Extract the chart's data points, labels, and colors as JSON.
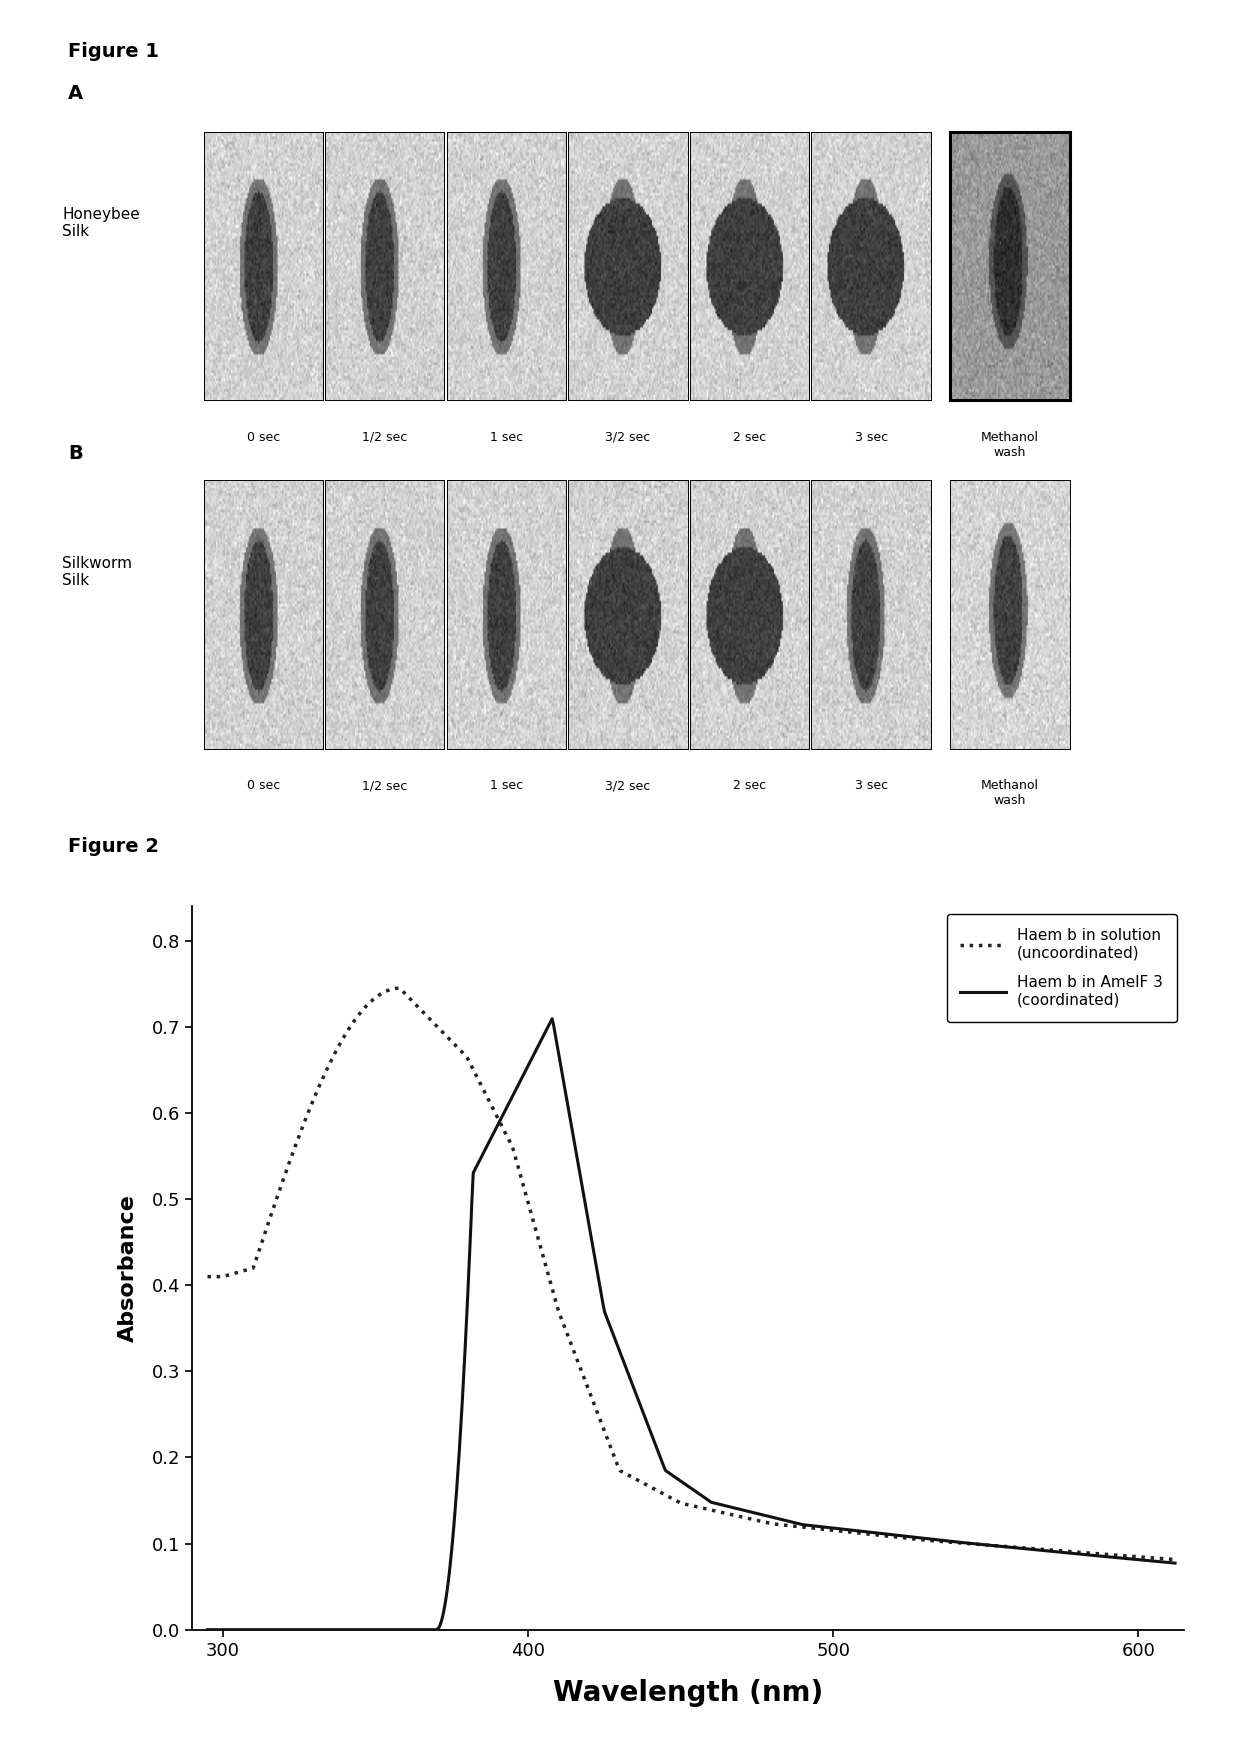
{
  "fig1_title": "Figure 1",
  "fig2_title": "Figure 2",
  "panel_A_label": "A",
  "panel_B_label": "B",
  "panel_A_row_label": "Honeybee\nSilk",
  "panel_B_row_label": "Silkworm\nSilk",
  "time_labels": [
    "0 sec",
    "1/2 sec",
    "1 sec",
    "3/2 sec",
    "2 sec",
    "3 sec"
  ],
  "methanol_label": "Methanol\nwash",
  "ylabel_fig2": "Absorbance",
  "xlabel_fig2": "Wavelength (nm)",
  "legend_dotted": "Haem b in solution\n(uncoordinated)",
  "legend_solid": "Haem b in AmelF 3\n(coordinated)",
  "xlim": [
    290,
    615
  ],
  "ylim": [
    0.0,
    0.84
  ],
  "yticks": [
    0.0,
    0.1,
    0.2,
    0.3,
    0.4,
    0.5,
    0.6,
    0.7,
    0.8
  ],
  "xticks": [
    300,
    400,
    500,
    600
  ],
  "background_color": "#ffffff",
  "line_color": "#000000",
  "fig_width": 12.4,
  "fig_height": 17.43,
  "dpi": 100,
  "n_img_panels": 6,
  "panel_A_img_bg": 0.82,
  "panel_B_img_bg": 0.82,
  "methanol_A_bg": 0.6,
  "methanol_B_bg": 0.83
}
